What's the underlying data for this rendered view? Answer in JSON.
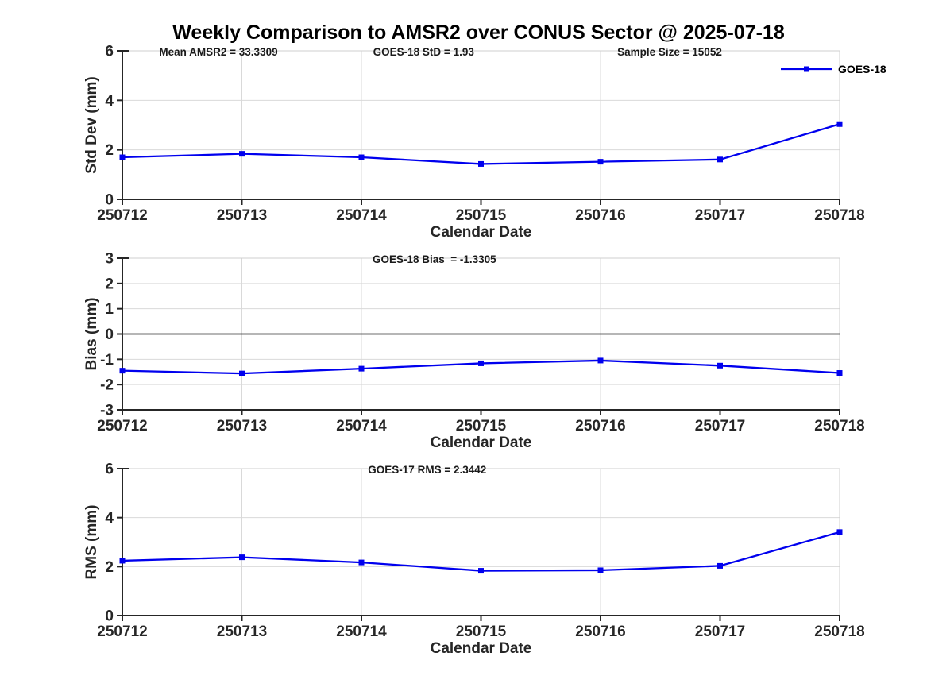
{
  "title": "Weekly Comparison to AMSR2 over CONUS Sector @ 2025-07-18",
  "xlabel": "Calendar Date",
  "colors": {
    "series": "#0000ee",
    "grid": "#d9d9d9",
    "axis": "#262626",
    "box_light": "#cfcfcf",
    "zero_line": "#3d3d3d",
    "title_text": "#000000"
  },
  "legend": {
    "label": "GOES-18",
    "position": "northeast"
  },
  "chart_data": [
    {
      "type": "line",
      "name": "std-dev",
      "title_annotations": [
        "Mean AMSR2 = 33.3309",
        "GOES-18 StD = 1.93",
        "Sample Size = 15052"
      ],
      "ylabel": "Std Dev (mm)",
      "xlabel": "Calendar Date",
      "ylim": [
        0,
        6
      ],
      "yticks": [
        0,
        2,
        4,
        6
      ],
      "categories": [
        "250712",
        "250713",
        "250714",
        "250715",
        "250716",
        "250717",
        "250718"
      ],
      "series": [
        {
          "name": "GOES-18",
          "values": [
            1.7,
            1.84,
            1.7,
            1.43,
            1.52,
            1.61,
            3.04
          ]
        }
      ],
      "grid": true,
      "show_legend": true,
      "zero_line": false
    },
    {
      "type": "line",
      "name": "bias",
      "title_annotations": [
        "GOES-18 Bias  = -1.3305"
      ],
      "ylabel": "Bias (mm)",
      "xlabel": "Calendar Date",
      "ylim": [
        -3,
        3
      ],
      "yticks": [
        -3,
        -2,
        -1,
        0,
        1,
        2,
        3
      ],
      "categories": [
        "250712",
        "250713",
        "250714",
        "250715",
        "250716",
        "250717",
        "250718"
      ],
      "series": [
        {
          "name": "GOES-18",
          "values": [
            -1.45,
            -1.56,
            -1.37,
            -1.16,
            -1.05,
            -1.25,
            -1.54
          ]
        }
      ],
      "grid": true,
      "show_legend": false,
      "zero_line": true
    },
    {
      "type": "line",
      "name": "rms",
      "title_annotations": [
        "GOES-17 RMS = 2.3442"
      ],
      "ylabel": "RMS (mm)",
      "xlabel": "Calendar Date",
      "ylim": [
        0,
        6
      ],
      "yticks": [
        0,
        2,
        4,
        6
      ],
      "categories": [
        "250712",
        "250713",
        "250714",
        "250715",
        "250716",
        "250717",
        "250718"
      ],
      "series": [
        {
          "name": "GOES-18",
          "values": [
            2.24,
            2.38,
            2.17,
            1.83,
            1.85,
            2.03,
            3.41
          ]
        }
      ],
      "grid": true,
      "show_legend": false,
      "zero_line": false
    }
  ]
}
